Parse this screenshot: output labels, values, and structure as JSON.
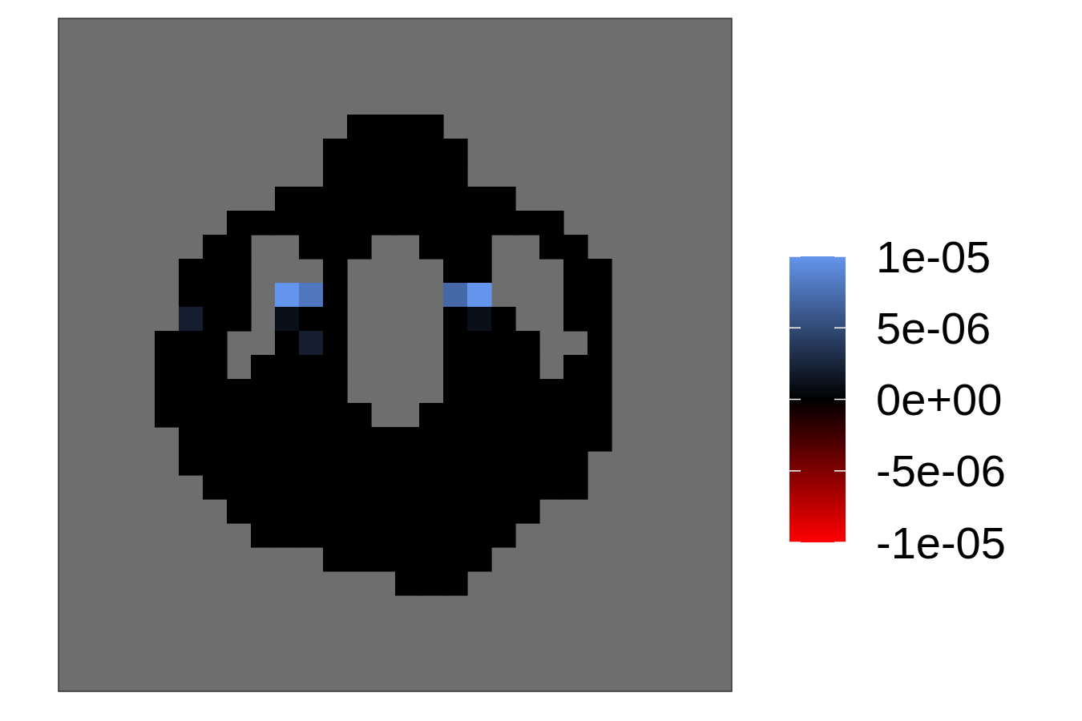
{
  "chart_data": {
    "type": "heatmap",
    "tick_labels": false,
    "x": [
      0.5,
      1.5,
      2.5,
      3.5,
      4.5,
      5.5,
      6.5,
      7.5,
      8.5,
      9.5,
      10.5,
      11.5,
      12.5,
      13.5,
      14.5,
      15.5,
      16.5,
      17.5,
      18.5,
      19.5,
      20.5,
      21.5,
      22.5,
      23.5,
      24.5,
      25.5,
      26.5,
      27.5
    ],
    "y": [
      0.5,
      1.5,
      2.5,
      3.5,
      4.5,
      5.5,
      6.5,
      7.5,
      8.5,
      9.5,
      10.5,
      11.5,
      12.5,
      13.5,
      14.5,
      15.5,
      16.5,
      17.5,
      18.5,
      19.5,
      20.5,
      21.5,
      22.5,
      23.5,
      24.5,
      25.5,
      26.5,
      27.5
    ],
    "xlim": [
      0,
      28
    ],
    "ylim": [
      0,
      28
    ],
    "z": [
      [
        null,
        null,
        null,
        null,
        null,
        null,
        null,
        null,
        null,
        null,
        null,
        null,
        null,
        null,
        null,
        null,
        null,
        null,
        null,
        null,
        null,
        null,
        null,
        null,
        null,
        null,
        null,
        null
      ],
      [
        null,
        null,
        null,
        null,
        null,
        null,
        null,
        null,
        null,
        null,
        null,
        null,
        null,
        null,
        null,
        null,
        null,
        null,
        null,
        null,
        null,
        null,
        null,
        null,
        null,
        null,
        null,
        null
      ],
      [
        null,
        null,
        null,
        null,
        null,
        null,
        null,
        null,
        null,
        null,
        null,
        null,
        null,
        null,
        null,
        null,
        null,
        null,
        null,
        null,
        null,
        null,
        null,
        null,
        null,
        null,
        null,
        null
      ],
      [
        null,
        null,
        null,
        null,
        null,
        null,
        null,
        null,
        null,
        null,
        null,
        null,
        null,
        null,
        null,
        null,
        null,
        null,
        null,
        null,
        null,
        null,
        null,
        null,
        null,
        null,
        null,
        null
      ],
      [
        null,
        null,
        null,
        null,
        null,
        null,
        null,
        null,
        null,
        null,
        null,
        null,
        0,
        0,
        0,
        0,
        null,
        null,
        null,
        null,
        null,
        null,
        null,
        null,
        null,
        null,
        null,
        null
      ],
      [
        null,
        null,
        null,
        null,
        null,
        null,
        null,
        null,
        null,
        null,
        null,
        0,
        0,
        0,
        0,
        0,
        0,
        null,
        null,
        null,
        null,
        null,
        null,
        null,
        null,
        null,
        null,
        null
      ],
      [
        null,
        null,
        null,
        null,
        null,
        null,
        null,
        null,
        null,
        null,
        null,
        0,
        0,
        0,
        0,
        0,
        0,
        null,
        null,
        null,
        null,
        null,
        null,
        null,
        null,
        null,
        null,
        null
      ],
      [
        null,
        null,
        null,
        null,
        null,
        null,
        null,
        null,
        null,
        0,
        0,
        0,
        0,
        0,
        0,
        0,
        0,
        0,
        0,
        null,
        null,
        null,
        null,
        null,
        null,
        null,
        null,
        null
      ],
      [
        null,
        null,
        null,
        null,
        null,
        null,
        null,
        0,
        0,
        0,
        0,
        0,
        0,
        0,
        0,
        0,
        0,
        0,
        0,
        0,
        0,
        null,
        null,
        null,
        null,
        null,
        null,
        null
      ],
      [
        null,
        null,
        null,
        null,
        null,
        null,
        0,
        0,
        null,
        null,
        0,
        0,
        0,
        null,
        null,
        0,
        0,
        0,
        null,
        null,
        0,
        0,
        null,
        null,
        null,
        null,
        null,
        null
      ],
      [
        null,
        null,
        null,
        null,
        null,
        0,
        0,
        0,
        null,
        null,
        null,
        0,
        null,
        null,
        null,
        null,
        0,
        0,
        null,
        null,
        null,
        0,
        0,
        null,
        null,
        null,
        null,
        null
      ],
      [
        null,
        null,
        null,
        null,
        null,
        0,
        0,
        0,
        null,
        1e-05,
        8e-06,
        0,
        null,
        null,
        null,
        null,
        7e-06,
        1e-05,
        null,
        null,
        null,
        0,
        0,
        null,
        null,
        null,
        null,
        null
      ],
      [
        null,
        null,
        null,
        null,
        null,
        2e-06,
        0,
        0,
        null,
        1e-06,
        0,
        0,
        null,
        null,
        null,
        null,
        0,
        1e-06,
        0,
        null,
        null,
        0,
        0,
        null,
        null,
        null,
        null,
        null
      ],
      [
        null,
        null,
        null,
        null,
        0,
        0,
        0,
        null,
        null,
        0,
        2e-06,
        0,
        null,
        null,
        null,
        null,
        0,
        0,
        0,
        0,
        null,
        null,
        0,
        null,
        null,
        null,
        null,
        null
      ],
      [
        null,
        null,
        null,
        null,
        0,
        0,
        0,
        null,
        0,
        0,
        0,
        0,
        null,
        null,
        null,
        null,
        0,
        0,
        0,
        0,
        null,
        0,
        0,
        null,
        null,
        null,
        null,
        null
      ],
      [
        null,
        null,
        null,
        null,
        0,
        0,
        0,
        0,
        0,
        0,
        0,
        0,
        null,
        null,
        null,
        null,
        0,
        0,
        0,
        0,
        0,
        0,
        0,
        null,
        null,
        null,
        null,
        null
      ],
      [
        null,
        null,
        null,
        null,
        0,
        0,
        0,
        0,
        0,
        0,
        0,
        0,
        0,
        null,
        null,
        0,
        0,
        0,
        0,
        0,
        0,
        0,
        0,
        null,
        null,
        null,
        null,
        null
      ],
      [
        null,
        null,
        null,
        null,
        null,
        0,
        0,
        0,
        0,
        0,
        0,
        0,
        0,
        0,
        0,
        0,
        0,
        0,
        0,
        0,
        0,
        0,
        0,
        null,
        null,
        null,
        null,
        null
      ],
      [
        null,
        null,
        null,
        null,
        null,
        0,
        0,
        0,
        0,
        0,
        0,
        0,
        0,
        0,
        0,
        0,
        0,
        0,
        0,
        0,
        0,
        0,
        null,
        null,
        null,
        null,
        null,
        null
      ],
      [
        null,
        null,
        null,
        null,
        null,
        null,
        0,
        0,
        0,
        0,
        0,
        0,
        0,
        0,
        0,
        0,
        0,
        0,
        0,
        0,
        0,
        0,
        null,
        null,
        null,
        null,
        null,
        null
      ],
      [
        null,
        null,
        null,
        null,
        null,
        null,
        null,
        0,
        0,
        0,
        0,
        0,
        0,
        0,
        0,
        0,
        0,
        0,
        0,
        0,
        null,
        null,
        null,
        null,
        null,
        null,
        null,
        null
      ],
      [
        null,
        null,
        null,
        null,
        null,
        null,
        null,
        null,
        0,
        0,
        0,
        0,
        0,
        0,
        0,
        0,
        0,
        0,
        0,
        null,
        null,
        null,
        null,
        null,
        null,
        null,
        null,
        null
      ],
      [
        null,
        null,
        null,
        null,
        null,
        null,
        null,
        null,
        null,
        null,
        null,
        0,
        0,
        0,
        0,
        0,
        0,
        0,
        null,
        null,
        null,
        null,
        null,
        null,
        null,
        null,
        null,
        null
      ],
      [
        null,
        null,
        null,
        null,
        null,
        null,
        null,
        null,
        null,
        null,
        null,
        null,
        null,
        null,
        0,
        0,
        0,
        null,
        null,
        null,
        null,
        null,
        null,
        null,
        null,
        null,
        null,
        null
      ],
      [
        null,
        null,
        null,
        null,
        null,
        null,
        null,
        null,
        null,
        null,
        null,
        null,
        null,
        null,
        null,
        null,
        null,
        null,
        null,
        null,
        null,
        null,
        null,
        null,
        null,
        null,
        null,
        null
      ],
      [
        null,
        null,
        null,
        null,
        null,
        null,
        null,
        null,
        null,
        null,
        null,
        null,
        null,
        null,
        null,
        null,
        null,
        null,
        null,
        null,
        null,
        null,
        null,
        null,
        null,
        null,
        null,
        null
      ],
      [
        null,
        null,
        null,
        null,
        null,
        null,
        null,
        null,
        null,
        null,
        null,
        null,
        null,
        null,
        null,
        null,
        null,
        null,
        null,
        null,
        null,
        null,
        null,
        null,
        null,
        null,
        null,
        null
      ],
      [
        null,
        null,
        null,
        null,
        null,
        null,
        null,
        null,
        null,
        null,
        null,
        null,
        null,
        null,
        null,
        null,
        null,
        null,
        null,
        null,
        null,
        null,
        null,
        null,
        null,
        null,
        null,
        null
      ]
    ],
    "colorbar": {
      "range": [
        -1e-05,
        1e-05
      ],
      "colors": [
        "#ff0000",
        "#000000",
        "#6495ed"
      ],
      "ticks": [
        {
          "value": 1e-05,
          "label": "1e-05"
        },
        {
          "value": 5e-06,
          "label": "5e-06"
        },
        {
          "value": 0,
          "label": "0e+00"
        },
        {
          "value": -5e-06,
          "label": "-5e-06"
        },
        {
          "value": -1e-05,
          "label": "-1e-05"
        }
      ]
    }
  }
}
